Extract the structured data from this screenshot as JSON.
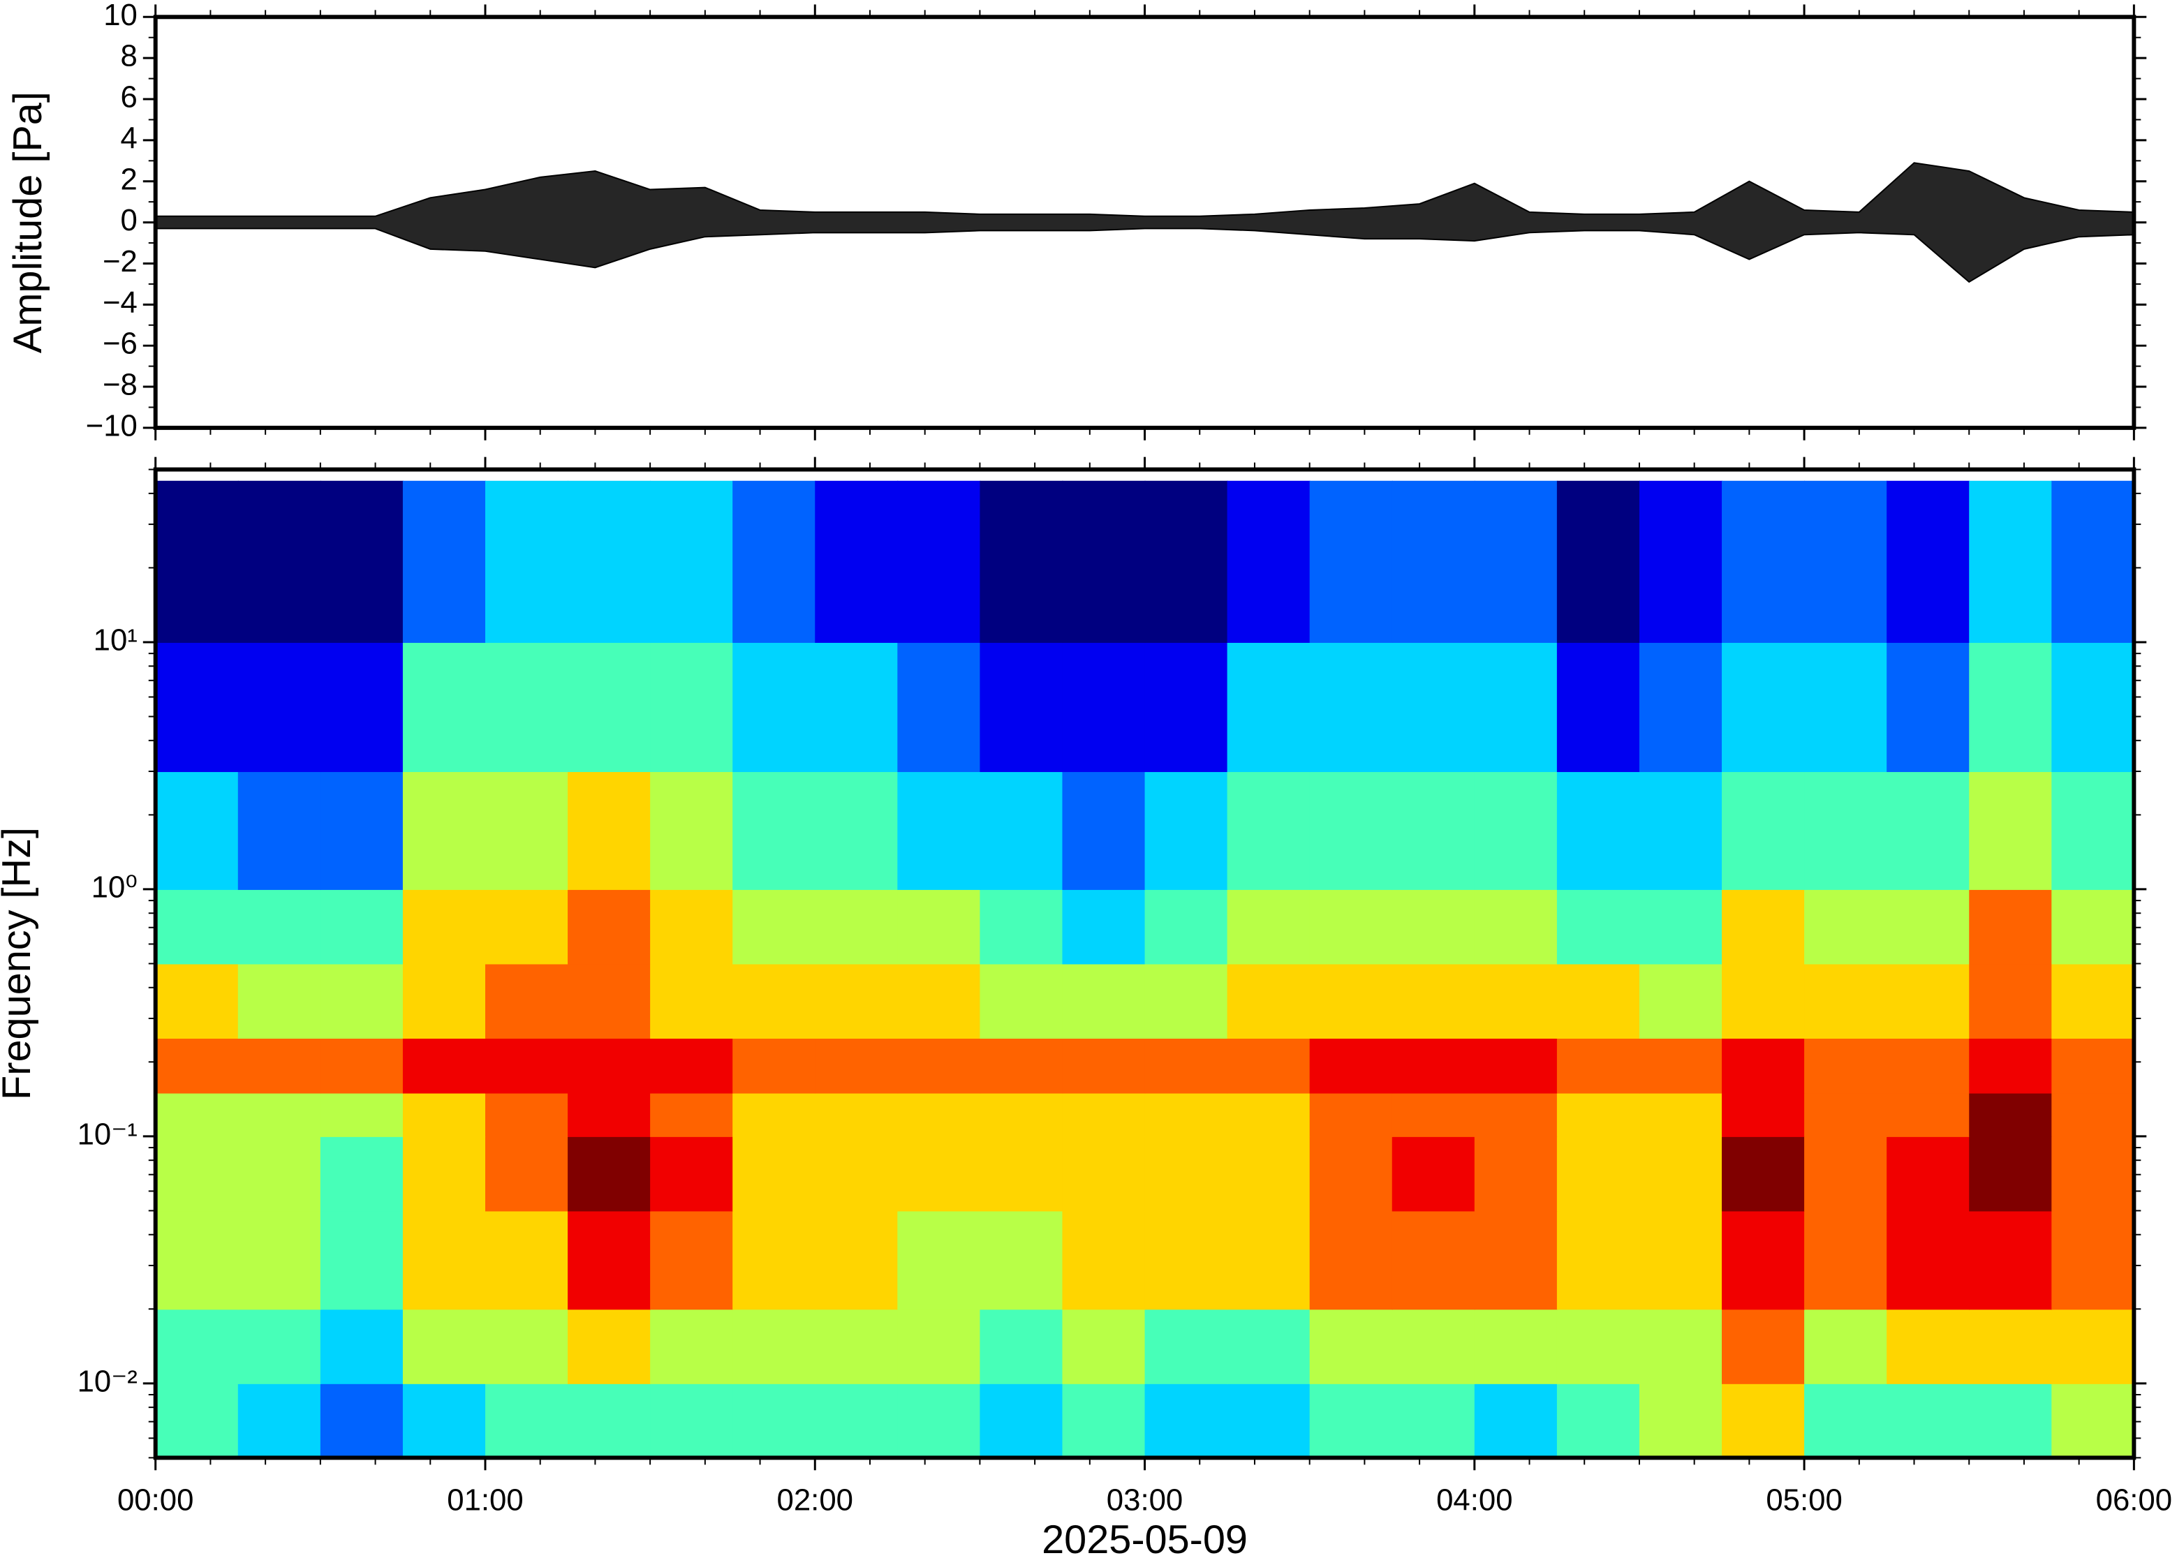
{
  "chart_data": [
    {
      "type": "line",
      "ylabel": "Amplitude [Pa]",
      "x": [
        "00:00",
        "00:10",
        "00:20",
        "00:30",
        "00:40",
        "00:50",
        "01:00",
        "01:10",
        "01:20",
        "01:30",
        "01:40",
        "01:50",
        "02:00",
        "02:10",
        "02:20",
        "02:30",
        "02:40",
        "02:50",
        "03:00",
        "03:10",
        "03:20",
        "03:30",
        "03:40",
        "03:50",
        "04:00",
        "04:10",
        "04:20",
        "04:30",
        "04:40",
        "04:50",
        "05:00",
        "05:10",
        "05:20",
        "05:30",
        "05:40",
        "05:50",
        "06:00"
      ],
      "series": [
        {
          "color": "#000000",
          "values": [
            0.3,
            0.3,
            0.3,
            0.3,
            0.3,
            1.2,
            1.6,
            2.2,
            2.5,
            1.6,
            1.7,
            0.6,
            0.5,
            0.5,
            0.5,
            0.4,
            0.4,
            0.4,
            0.3,
            0.3,
            0.4,
            0.6,
            0.7,
            0.9,
            1.9,
            0.5,
            0.4,
            0.4,
            0.5,
            2.0,
            0.6,
            0.5,
            2.9,
            2.5,
            1.2,
            0.6,
            0.5
          ]
        },
        {
          "color": "#000000",
          "values": [
            -0.3,
            -0.3,
            -0.3,
            -0.3,
            -0.3,
            -1.3,
            -1.4,
            -1.8,
            -2.2,
            -1.3,
            -0.7,
            -0.6,
            -0.5,
            -0.5,
            -0.5,
            -0.4,
            -0.4,
            -0.4,
            -0.3,
            -0.3,
            -0.4,
            -0.6,
            -0.8,
            -0.8,
            -0.9,
            -0.5,
            -0.4,
            -0.4,
            -0.6,
            -1.8,
            -0.6,
            -0.5,
            -0.6,
            -2.9,
            -1.3,
            -0.7,
            -0.6
          ]
        }
      ],
      "xlim": [
        "00:00",
        "06:00"
      ],
      "ylim": [
        -10,
        10
      ],
      "yticks": [
        {
          "value": -10,
          "label": "−10"
        },
        {
          "value": -8,
          "label": "−8"
        },
        {
          "value": -6,
          "label": "−6"
        },
        {
          "value": -4,
          "label": "−4"
        },
        {
          "value": -2,
          "label": "−2"
        },
        0,
        2,
        4,
        6,
        8,
        10
      ]
    },
    {
      "type": "heatmap",
      "ylabel": "Frequency [Hz]",
      "xlabel": "2025-05-09",
      "xlim": [
        "00:00",
        "06:00"
      ],
      "xticks": [
        "00:00",
        "01:00",
        "02:00",
        "03:00",
        "04:00",
        "05:00",
        "06:00"
      ],
      "ylim": [
        0.005,
        50
      ],
      "yscale": "log",
      "yticks": [
        {
          "value": 0.01,
          "label": "10⁻²"
        },
        {
          "value": 0.1,
          "label": "10⁻¹"
        },
        {
          "value": 1,
          "label": "10⁰"
        },
        {
          "value": 10,
          "label": "10¹"
        }
      ],
      "colormap": "jet",
      "zlim": [
        0,
        9
      ],
      "x_bins": [
        "00:00",
        "00:15",
        "00:30",
        "00:45",
        "01:00",
        "01:15",
        "01:30",
        "01:45",
        "02:00",
        "02:15",
        "02:30",
        "02:45",
        "03:00",
        "03:15",
        "03:30",
        "03:45",
        "04:00",
        "04:15",
        "04:30",
        "04:45",
        "05:00",
        "05:15",
        "05:30",
        "05:45",
        "06:00"
      ],
      "y_bins": [
        0.005,
        0.01,
        0.02,
        0.05,
        0.1,
        0.15,
        0.25,
        0.5,
        1,
        3,
        10,
        45
      ],
      "z": [
        [
          4,
          3,
          2,
          3,
          4,
          4,
          4,
          4,
          4,
          4,
          3,
          4,
          3,
          3,
          4,
          4,
          3,
          4,
          5,
          6,
          4,
          4,
          4,
          5
        ],
        [
          4,
          4,
          3,
          5,
          5,
          6,
          5,
          5,
          5,
          5,
          4,
          5,
          4,
          4,
          5,
          5,
          5,
          5,
          5,
          7,
          5,
          6,
          6,
          6
        ],
        [
          5,
          5,
          4,
          6,
          6,
          8,
          7,
          6,
          6,
          5,
          5,
          6,
          6,
          6,
          7,
          7,
          7,
          6,
          6,
          8,
          7,
          8,
          8,
          7
        ],
        [
          5,
          5,
          4,
          6,
          7,
          9,
          8,
          6,
          6,
          6,
          6,
          6,
          6,
          6,
          7,
          8,
          7,
          6,
          6,
          9,
          7,
          8,
          9,
          7
        ],
        [
          5,
          5,
          5,
          6,
          7,
          8,
          7,
          6,
          6,
          6,
          6,
          6,
          6,
          6,
          7,
          7,
          7,
          6,
          6,
          8,
          7,
          7,
          9,
          7
        ],
        [
          7,
          7,
          7,
          8,
          8,
          8,
          8,
          7,
          7,
          7,
          7,
          7,
          7,
          7,
          8,
          8,
          8,
          7,
          7,
          8,
          7,
          7,
          8,
          7
        ],
        [
          6,
          5,
          5,
          6,
          7,
          7,
          6,
          6,
          6,
          6,
          5,
          5,
          5,
          6,
          6,
          6,
          6,
          6,
          5,
          6,
          6,
          6,
          7,
          6
        ],
        [
          4,
          4,
          4,
          6,
          6,
          7,
          6,
          5,
          5,
          5,
          4,
          3,
          4,
          5,
          5,
          5,
          5,
          4,
          4,
          6,
          5,
          5,
          7,
          5
        ],
        [
          3,
          2,
          2,
          5,
          5,
          6,
          5,
          4,
          4,
          3,
          3,
          2,
          3,
          4,
          4,
          4,
          4,
          3,
          3,
          4,
          4,
          4,
          5,
          4
        ],
        [
          1,
          1,
          1,
          4,
          4,
          4,
          4,
          3,
          3,
          2,
          1,
          1,
          1,
          3,
          3,
          3,
          3,
          1,
          2,
          3,
          3,
          2,
          4,
          3
        ],
        [
          0,
          0,
          0,
          2,
          3,
          3,
          3,
          2,
          1,
          1,
          0,
          0,
          0,
          1,
          2,
          2,
          2,
          0,
          1,
          2,
          2,
          1,
          3,
          2
        ]
      ]
    }
  ]
}
